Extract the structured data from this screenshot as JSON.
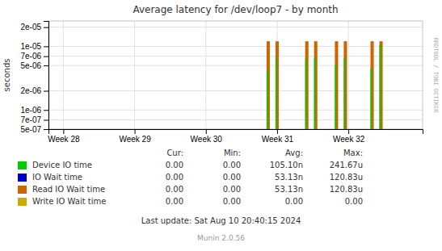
{
  "chart_data": {
    "type": "bar",
    "title": "Average latency for /dev/loop7 - by month",
    "y_label": "seconds",
    "x": [
      35.0,
      36.5,
      41.5,
      43.0,
      46.5,
      48.0,
      52.5,
      54.0
    ],
    "series": [
      {
        "name": "Device IO time",
        "color": "#00cc00",
        "values": [
          4.1e-06,
          6.9e-06,
          6.4e-06,
          6.5e-06,
          5.1e-06,
          6.5e-06,
          4.5e-06,
          1.05e-05
        ],
        "stats": [
          "0.00",
          "0.00",
          "105.10n",
          "241.67u"
        ]
      },
      {
        "name": "IO Wait time",
        "color": "#0000cc",
        "values": [
          null,
          null,
          null,
          null,
          null,
          null,
          null,
          null
        ],
        "stats": [
          "0.00",
          "0.00",
          "53.13n",
          "120.83u"
        ]
      },
      {
        "name": "Read IO Wait time",
        "color": "#cc6600",
        "values": [
          1.2e-05,
          1.2e-05,
          1.2e-05,
          1.2e-05,
          1.2e-05,
          1.2e-05,
          1.2e-05,
          1.2e-05
        ],
        "stats": [
          "0.00",
          "0.00",
          "53.13n",
          "120.83u"
        ]
      },
      {
        "name": "Write IO Wait time",
        "color": "#ccaa00",
        "values": [
          null,
          null,
          null,
          null,
          null,
          null,
          null,
          null
        ],
        "stats": [
          "0.00",
          "0.00",
          "0.00",
          "0.00"
        ]
      }
    ],
    "stats_header": [
      "Cur:",
      "Min:",
      "Avg:",
      "Max:"
    ],
    "xlim": [
      -2,
      61
    ],
    "xticks": [
      {
        "value": 0.5,
        "label": "Week 28"
      },
      {
        "value": 12.5,
        "label": "Week 29"
      },
      {
        "value": 24.5,
        "label": "Week 30"
      },
      {
        "value": 36.5,
        "label": "Week 31"
      },
      {
        "value": 48.5,
        "label": "Week 32"
      }
    ],
    "ylim": [
      5e-07,
      2.5e-05
    ],
    "yticks": [
      {
        "value": 5e-07,
        "label": "5e-07"
      },
      {
        "value": 7e-07,
        "label": "7e-07"
      },
      {
        "value": 1e-06,
        "label": "1e-06"
      },
      {
        "value": 2e-06,
        "label": "2e-06"
      },
      {
        "value": 5e-06,
        "label": "5e-06"
      },
      {
        "value": 7e-06,
        "label": "7e-06"
      },
      {
        "value": 1e-05,
        "label": "1e-05"
      },
      {
        "value": 2e-05,
        "label": "2e-05"
      }
    ],
    "log": "y",
    "grid": true,
    "legend": "bottom",
    "annotations": [
      "Last update: Sat Aug 10 20:40:15 2024",
      "Munin 2.0.56",
      "RRDTOOL / TOBI OETIKER"
    ]
  }
}
